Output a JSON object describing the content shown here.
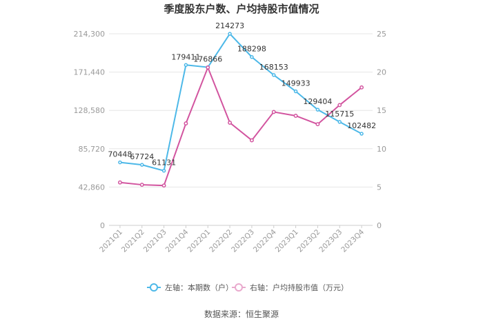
{
  "chart_data": {
    "type": "line",
    "title": "季度股东户数、户均持股市值情况",
    "categories": [
      "2021Q1",
      "2021Q2",
      "2021Q3",
      "2021Q4",
      "2022Q1",
      "2022Q2",
      "2022Q3",
      "2022Q4",
      "2023Q1",
      "2023Q2",
      "2023Q3",
      "2023Q4"
    ],
    "series": [
      {
        "name": "左轴：本期数（户）",
        "axis": "left",
        "color": "#4cb8e8",
        "values": [
          70448,
          67724,
          61131,
          179411,
          176866,
          214273,
          188298,
          168153,
          149933,
          129404,
          115715,
          102482
        ],
        "labels": [
          "70448",
          "67724",
          "61131",
          "179411",
          "176866",
          "214273",
          "188298",
          "168153",
          "149933",
          "129404",
          "115715",
          "102482"
        ]
      },
      {
        "name": "右轴：户均持股市值（万元）",
        "axis": "right",
        "color": "#d2549f",
        "values": [
          5.6,
          5.3,
          5.2,
          13.3,
          20.6,
          13.4,
          11.1,
          14.8,
          14.3,
          13.2,
          15.7,
          18.0
        ]
      }
    ],
    "left_axis": {
      "ylim": [
        0,
        214300
      ],
      "ticks": [
        "0",
        "42,860",
        "85,720",
        "128,580",
        "171,440",
        "214,300"
      ],
      "tick_values": [
        0,
        42860,
        85720,
        128580,
        171440,
        214300
      ]
    },
    "right_axis": {
      "ylim": [
        0,
        25
      ],
      "ticks": [
        "0",
        "5",
        "10",
        "15",
        "20",
        "25"
      ],
      "tick_values": [
        0,
        5,
        10,
        15,
        20,
        25
      ]
    },
    "grid": true,
    "legend_position": "bottom",
    "source": "数据来源：恒生聚源"
  }
}
